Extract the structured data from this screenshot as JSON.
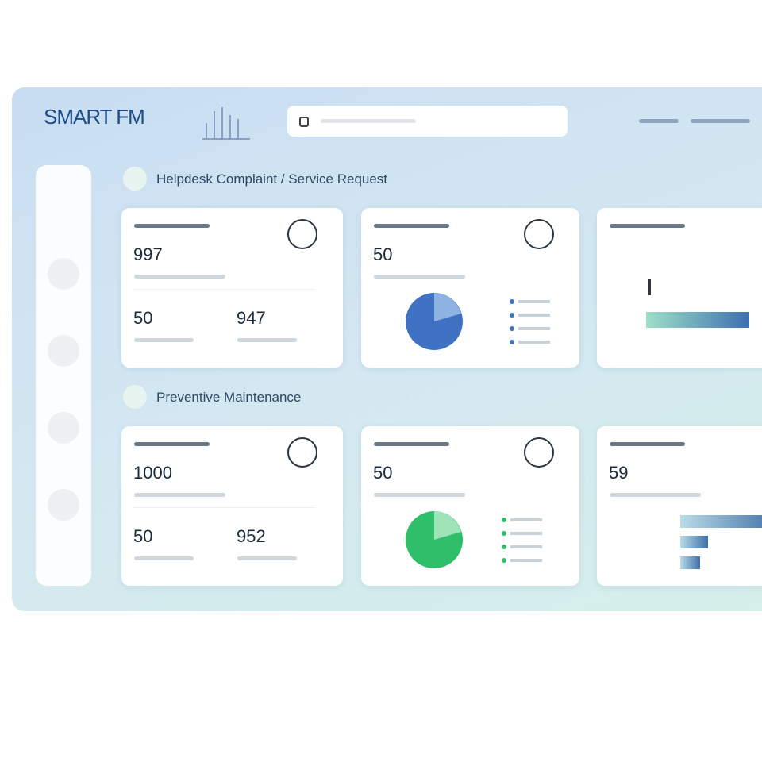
{
  "header": {
    "logo": "SMART FM"
  },
  "sections": [
    {
      "title": "Helpdesk Complaint / Service Request",
      "cards": [
        {
          "value": "997",
          "stats": [
            "50",
            "947"
          ]
        },
        {
          "value": "50"
        },
        {}
      ]
    },
    {
      "title": "Preventive Maintenance",
      "cards": [
        {
          "value": "1000",
          "stats": [
            "50",
            "952"
          ]
        },
        {
          "value": "50"
        },
        {
          "value": "59"
        }
      ]
    }
  ]
}
